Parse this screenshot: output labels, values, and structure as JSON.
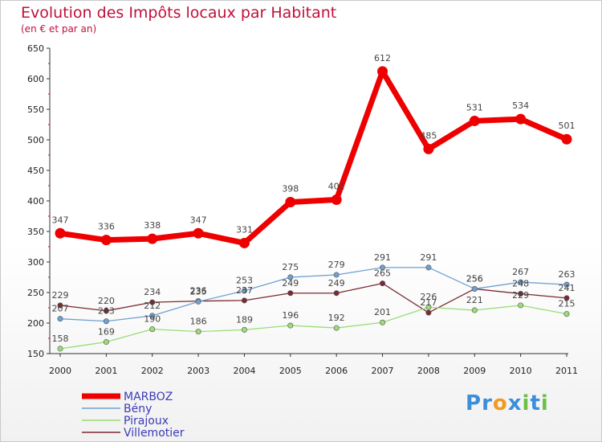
{
  "chart_data": {
    "type": "line",
    "title": "Evolution des Impôts locaux par Habitant",
    "subtitle": "(en € et par an)",
    "x": [
      "2000",
      "2001",
      "2002",
      "2003",
      "2004",
      "2005",
      "2006",
      "2007",
      "2008",
      "2009",
      "2010",
      "2011"
    ],
    "ylim": [
      150,
      650
    ],
    "yticks": [
      150,
      200,
      250,
      300,
      350,
      400,
      450,
      500,
      550,
      600,
      650
    ],
    "grid": false,
    "legend_position": "bottom-left",
    "series": [
      {
        "name": "MARBOZ",
        "color": "#ee0000",
        "values": [
          347,
          336,
          338,
          347,
          331,
          398,
          402,
          612,
          485,
          531,
          534,
          501
        ]
      },
      {
        "name": "Bény",
        "color": "#6fa1cf",
        "values": [
          207,
          203,
          212,
          235,
          253,
          275,
          279,
          291,
          291,
          256,
          267,
          263
        ]
      },
      {
        "name": "Pirajoux",
        "color": "#99dd77",
        "values": [
          158,
          169,
          190,
          186,
          189,
          196,
          192,
          201,
          226,
          221,
          229,
          215
        ]
      },
      {
        "name": "Villemotier",
        "color": "#7a2a32",
        "values": [
          229,
          220,
          234,
          236,
          237,
          249,
          249,
          265,
          217,
          256,
          248,
          241
        ]
      }
    ]
  },
  "brand": {
    "letters": [
      "P",
      "r",
      "o",
      "x",
      "i",
      "t",
      "i"
    ],
    "colors": [
      "#3a8fd8",
      "#3a8fd8",
      "#f29a1f",
      "#3a8fd8",
      "#6cc04a",
      "#3a8fd8",
      "#6cc04a"
    ]
  }
}
